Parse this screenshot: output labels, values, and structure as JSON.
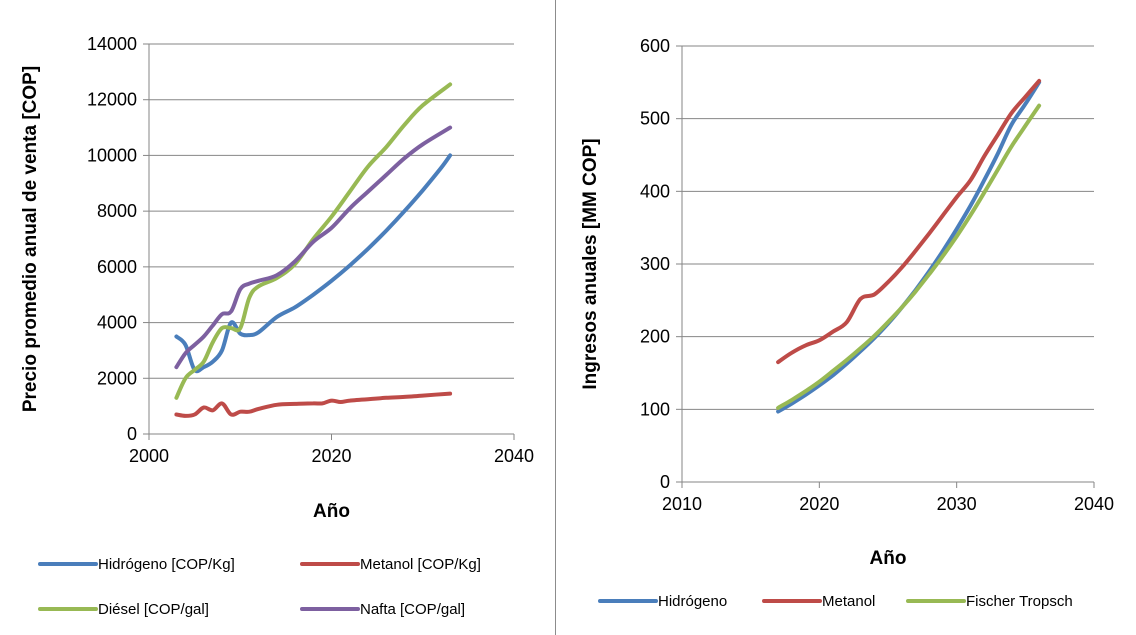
{
  "charts": [
    {
      "type": "line",
      "title": "",
      "xlabel": "Año",
      "ylabel": "Precio promedio anual de venta [COP]",
      "xlim": [
        2000,
        2040
      ],
      "ylim": [
        0,
        14000
      ],
      "xticks": [
        2000,
        2020,
        2040
      ],
      "yticks": [
        0,
        2000,
        4000,
        6000,
        8000,
        10000,
        12000,
        14000
      ],
      "grid": "horizontal",
      "legend_position": "bottom",
      "series": [
        {
          "name": "Hidrógeno [COP/Kg]",
          "color": "#4A7EBB",
          "points": [
            [
              2003,
              3500
            ],
            [
              2004,
              3200
            ],
            [
              2005,
              2300
            ],
            [
              2006,
              2400
            ],
            [
              2007,
              2600
            ],
            [
              2008,
              3000
            ],
            [
              2009,
              4000
            ],
            [
              2010,
              3600
            ],
            [
              2011,
              3550
            ],
            [
              2012,
              3650
            ],
            [
              2014,
              4200
            ],
            [
              2016,
              4550
            ],
            [
              2018,
              5000
            ],
            [
              2020,
              5500
            ],
            [
              2022,
              6050
            ],
            [
              2024,
              6650
            ],
            [
              2026,
              7300
            ],
            [
              2028,
              8000
            ],
            [
              2030,
              8750
            ],
            [
              2032,
              9550
            ],
            [
              2033,
              10000
            ]
          ]
        },
        {
          "name": "Metanol [COP/Kg]",
          "color": "#BE4B48",
          "points": [
            [
              2003,
              700
            ],
            [
              2004,
              650
            ],
            [
              2005,
              700
            ],
            [
              2006,
              950
            ],
            [
              2007,
              850
            ],
            [
              2008,
              1100
            ],
            [
              2009,
              700
            ],
            [
              2010,
              800
            ],
            [
              2011,
              800
            ],
            [
              2012,
              900
            ],
            [
              2014,
              1050
            ],
            [
              2016,
              1080
            ],
            [
              2018,
              1100
            ],
            [
              2019,
              1100
            ],
            [
              2020,
              1200
            ],
            [
              2021,
              1150
            ],
            [
              2022,
              1200
            ],
            [
              2024,
              1250
            ],
            [
              2026,
              1300
            ],
            [
              2028,
              1330
            ],
            [
              2030,
              1380
            ],
            [
              2033,
              1450
            ]
          ]
        },
        {
          "name": "Diésel [COP/gal]",
          "color": "#98B954",
          "points": [
            [
              2003,
              1300
            ],
            [
              2004,
              2000
            ],
            [
              2005,
              2300
            ],
            [
              2006,
              2600
            ],
            [
              2007,
              3300
            ],
            [
              2008,
              3800
            ],
            [
              2009,
              3800
            ],
            [
              2010,
              3800
            ],
            [
              2011,
              4900
            ],
            [
              2012,
              5300
            ],
            [
              2014,
              5600
            ],
            [
              2016,
              6100
            ],
            [
              2018,
              7000
            ],
            [
              2020,
              7800
            ],
            [
              2022,
              8700
            ],
            [
              2024,
              9600
            ],
            [
              2026,
              10300
            ],
            [
              2028,
              11100
            ],
            [
              2030,
              11800
            ],
            [
              2033,
              12550
            ]
          ]
        },
        {
          "name": "Nafta [COP/gal]",
          "color": "#7D60A0",
          "points": [
            [
              2003,
              2400
            ],
            [
              2004,
              2900
            ],
            [
              2005,
              3200
            ],
            [
              2006,
              3500
            ],
            [
              2007,
              3900
            ],
            [
              2008,
              4300
            ],
            [
              2009,
              4400
            ],
            [
              2010,
              5200
            ],
            [
              2011,
              5400
            ],
            [
              2012,
              5500
            ],
            [
              2014,
              5700
            ],
            [
              2016,
              6200
            ],
            [
              2018,
              6900
            ],
            [
              2020,
              7400
            ],
            [
              2022,
              8100
            ],
            [
              2024,
              8700
            ],
            [
              2026,
              9300
            ],
            [
              2028,
              9900
            ],
            [
              2030,
              10400
            ],
            [
              2033,
              11000
            ]
          ]
        }
      ],
      "legend_rows": [
        [
          "Hidrógeno [COP/Kg]",
          "Metanol [COP/Kg]"
        ],
        [
          "Diésel [COP/gal]",
          "Nafta [COP/gal]"
        ]
      ]
    },
    {
      "type": "line",
      "title": "",
      "xlabel": "Año",
      "ylabel": "Ingresos anuales [MM COP]",
      "xlim": [
        2010,
        2040
      ],
      "ylim": [
        0,
        600
      ],
      "xticks": [
        2010,
        2020,
        2030,
        2040
      ],
      "yticks": [
        0,
        100,
        200,
        300,
        400,
        500,
        600
      ],
      "grid": "horizontal",
      "legend_position": "bottom",
      "series": [
        {
          "name": "Hidrógeno",
          "color": "#4A7EBB",
          "points": [
            [
              2017,
              97
            ],
            [
              2018,
              108
            ],
            [
              2019,
              120
            ],
            [
              2020,
              133
            ],
            [
              2021,
              147
            ],
            [
              2022,
              163
            ],
            [
              2023,
              180
            ],
            [
              2024,
              198
            ],
            [
              2025,
              218
            ],
            [
              2026,
              240
            ],
            [
              2027,
              264
            ],
            [
              2028,
              290
            ],
            [
              2029,
              318
            ],
            [
              2030,
              348
            ],
            [
              2031,
              380
            ],
            [
              2032,
              415
            ],
            [
              2033,
              452
            ],
            [
              2034,
              492
            ],
            [
              2035,
              520
            ],
            [
              2036,
              550
            ]
          ]
        },
        {
          "name": "Metanol",
          "color": "#BE4B48",
          "points": [
            [
              2017,
              165
            ],
            [
              2018,
              178
            ],
            [
              2019,
              188
            ],
            [
              2020,
              195
            ],
            [
              2021,
              207
            ],
            [
              2022,
              220
            ],
            [
              2023,
              252
            ],
            [
              2024,
              258
            ],
            [
              2025,
              275
            ],
            [
              2026,
              295
            ],
            [
              2027,
              318
            ],
            [
              2028,
              342
            ],
            [
              2029,
              367
            ],
            [
              2030,
              392
            ],
            [
              2031,
              415
            ],
            [
              2032,
              448
            ],
            [
              2033,
              478
            ],
            [
              2034,
              508
            ],
            [
              2035,
              530
            ],
            [
              2036,
              552
            ]
          ]
        },
        {
          "name": "Fischer Tropsch",
          "color": "#98B954",
          "points": [
            [
              2017,
              102
            ],
            [
              2018,
              113
            ],
            [
              2019,
              125
            ],
            [
              2020,
              138
            ],
            [
              2021,
              153
            ],
            [
              2022,
              168
            ],
            [
              2023,
              184
            ],
            [
              2024,
              201
            ],
            [
              2025,
              220
            ],
            [
              2026,
              240
            ],
            [
              2027,
              262
            ],
            [
              2028,
              286
            ],
            [
              2029,
              311
            ],
            [
              2030,
              338
            ],
            [
              2031,
              367
            ],
            [
              2032,
              398
            ],
            [
              2033,
              430
            ],
            [
              2034,
              462
            ],
            [
              2035,
              490
            ],
            [
              2036,
              518
            ]
          ]
        }
      ],
      "legend_rows": [
        [
          "Hidrógeno",
          "Metanol",
          "Fischer Tropsch"
        ]
      ]
    }
  ]
}
